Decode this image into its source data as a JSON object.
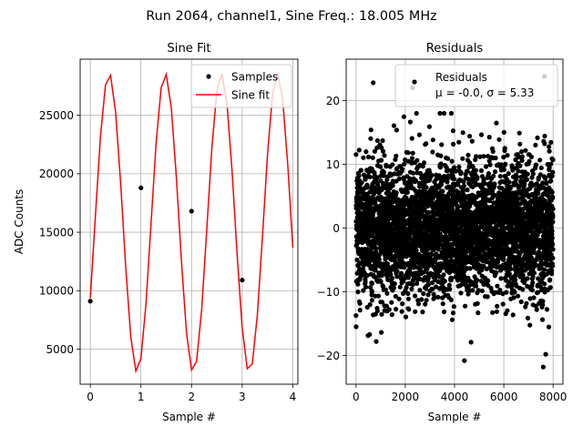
{
  "figure": {
    "suptitle": "Run 2064, channel1, Sine Freq.: 18.005 MHz"
  },
  "chart_data": [
    {
      "type": "line",
      "title": "Sine Fit",
      "xlabel": "Sample #",
      "ylabel": "ADC Counts",
      "xlim": [
        -0.2,
        4.1
      ],
      "ylim": [
        2000,
        29800
      ],
      "xticks": [
        0,
        1,
        2,
        3,
        4
      ],
      "xtick_labels": [
        "0",
        "1",
        "2",
        "3",
        "4"
      ],
      "yticks": [
        5000,
        10000,
        15000,
        20000,
        25000
      ],
      "ytick_labels": [
        "5000",
        "10000",
        "15000",
        "20000",
        "25000"
      ],
      "grid": true,
      "legend": {
        "position": "top-right",
        "entries": [
          "Samples",
          "Sine fit"
        ]
      },
      "series": [
        {
          "name": "Samples",
          "kind": "scatter",
          "color": "#000000",
          "x": [
            0,
            1,
            2,
            3
          ],
          "y": [
            9100,
            18800,
            16800,
            10900
          ]
        },
        {
          "name": "Sine fit",
          "kind": "line",
          "color": "#ff0000",
          "model": {
            "offset": 15800,
            "amplitude": 12800,
            "frequency_per_sample": 0.9026,
            "phase": -0.527,
            "x_start": 0,
            "x_end": 4,
            "step": 0.1
          }
        }
      ]
    },
    {
      "type": "scatter",
      "title": "Residuals",
      "xlabel": "Sample #",
      "ylabel": "",
      "xlim": [
        -400,
        8400
      ],
      "ylim": [
        -24.5,
        26.5
      ],
      "xticks": [
        0,
        2000,
        4000,
        6000,
        8000
      ],
      "xtick_labels": [
        "0",
        "2000",
        "4000",
        "6000",
        "8000"
      ],
      "yticks": [
        -20,
        -10,
        0,
        10,
        20
      ],
      "ytick_labels": [
        "−20",
        "−10",
        "0",
        "10",
        "20"
      ],
      "grid": true,
      "legend": {
        "position": "top-right",
        "entries": [
          "Residuals",
          "μ = -0.0, σ = 5.33"
        ]
      },
      "series": [
        {
          "name": "Residuals",
          "color": "#000000",
          "distribution": {
            "n_points": 8000,
            "x_min": 0,
            "x_max": 8000,
            "mean": 0.0,
            "std": 5.33
          },
          "notable_points": [
            {
              "x": 700,
              "y": 22.8
            },
            {
              "x": 2300,
              "y": 22.0
            },
            {
              "x": 7650,
              "y": 23.8
            },
            {
              "x": 4400,
              "y": -20.8
            },
            {
              "x": 7600,
              "y": -21.8
            },
            {
              "x": 820,
              "y": -17.8
            },
            {
              "x": 7700,
              "y": -19.8
            }
          ]
        }
      ]
    }
  ]
}
